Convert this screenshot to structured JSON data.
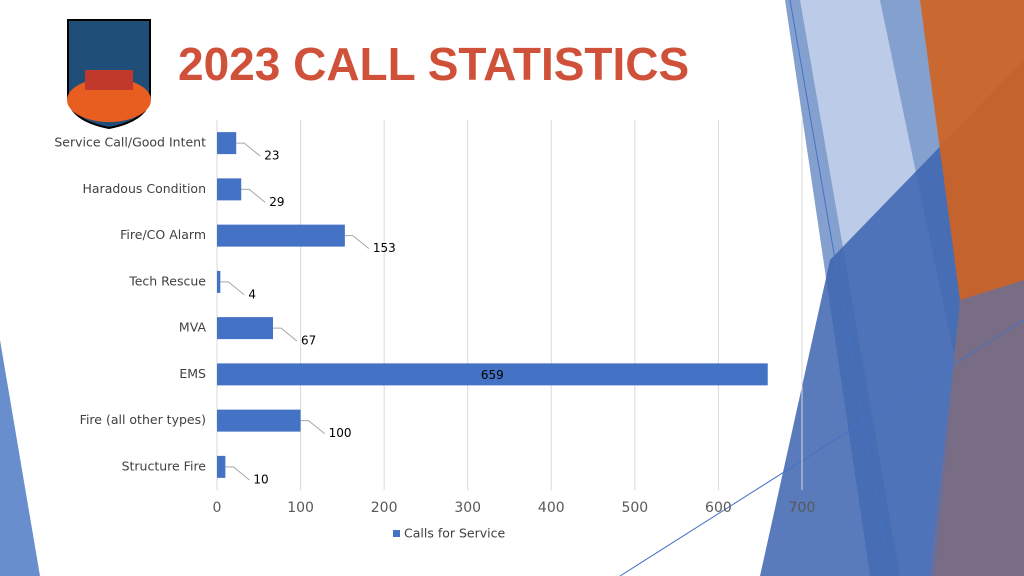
{
  "chart_data": {
    "type": "bar",
    "orientation": "horizontal",
    "title": "2023 CALL STATISTICS",
    "categories": [
      "Service Call/Good Intent",
      "Haradous Condition",
      "Fire/CO Alarm",
      "Tech Rescue",
      "MVA",
      "EMS",
      "Fire (all other types)",
      "Structure Fire"
    ],
    "series": [
      {
        "name": "Calls for Service",
        "color": "#4472c4",
        "values": [
          23,
          29,
          153,
          4,
          67,
          659,
          100,
          10
        ]
      }
    ],
    "xlim": [
      0,
      700
    ],
    "xticks": [
      0,
      100,
      200,
      300,
      400,
      500,
      600,
      700
    ],
    "grid": true,
    "legend": "bottom"
  }
}
